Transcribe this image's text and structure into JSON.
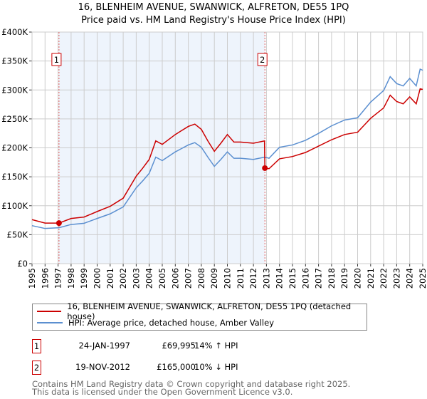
{
  "title_line1": "16, BLENHEIM AVENUE, SWANWICK, ALFRETON, DE55 1PQ",
  "title_line2": "Price paid vs. HM Land Registry's House Price Index (HPI)",
  "chart_data": {
    "type": "line",
    "xlim": [
      1995,
      2025
    ],
    "ylim": [
      0,
      400000
    ],
    "y_ticks": [
      0,
      50000,
      100000,
      150000,
      200000,
      250000,
      300000,
      350000,
      400000
    ],
    "y_tick_labels": [
      "£0",
      "£50K",
      "£100K",
      "£150K",
      "£200K",
      "£250K",
      "£300K",
      "£350K",
      "£400K"
    ],
    "x_ticks": [
      "1995",
      "1996",
      "1997",
      "1998",
      "1999",
      "2000",
      "2001",
      "2002",
      "2003",
      "2004",
      "2005",
      "2006",
      "2007",
      "2008",
      "2009",
      "2010",
      "2011",
      "2012",
      "2013",
      "2014",
      "2015",
      "2016",
      "2017",
      "2018",
      "2019",
      "2020",
      "2021",
      "2022",
      "2023",
      "2024",
      "2025"
    ],
    "grid": true,
    "shaded_range": [
      1997.07,
      2012.88
    ],
    "series": [
      {
        "name": "16, BLENHEIM AVENUE, SWANWICK, ALFRETON, DE55 1PQ (detached house)",
        "color": "#cc0000",
        "x": [
          1995,
          1996,
          1997.07,
          1998,
          1999,
          2000,
          2001,
          2002,
          2003,
          2003.5,
          2004,
          2004.5,
          2005,
          2006,
          2007,
          2007.5,
          2008,
          2008.5,
          2009,
          2009.5,
          2010,
          2010.5,
          2011,
          2012,
          2012.85,
          2012.88,
          2013.2,
          2014,
          2015,
          2016,
          2017,
          2018,
          2019,
          2020,
          2021,
          2022,
          2022.5,
          2023,
          2023.5,
          2024,
          2024.5,
          2024.8,
          2025
        ],
        "y": [
          76000,
          70000,
          70000,
          78000,
          80500,
          90000,
          99000,
          113000,
          151000,
          165000,
          180000,
          212000,
          206000,
          223000,
          237000,
          241000,
          232000,
          212000,
          194000,
          208000,
          223000,
          210000,
          210000,
          208000,
          212000,
          165000,
          164000,
          181000,
          185000,
          192000,
          203000,
          214000,
          223000,
          227000,
          251000,
          269000,
          291000,
          280000,
          276000,
          288000,
          276000,
          302000,
          301000
        ]
      },
      {
        "name": "HPI: Average price, detached house, Amber Valley",
        "color": "#5b8fd0",
        "x": [
          1995,
          1996,
          1997.07,
          1998,
          1999,
          2000,
          2001,
          2002,
          2003,
          2003.5,
          2004,
          2004.5,
          2005,
          2006,
          2007,
          2007.5,
          2008,
          2008.5,
          2009,
          2009.5,
          2010,
          2010.5,
          2011,
          2012,
          2012.88,
          2013.2,
          2014,
          2015,
          2016,
          2017,
          2018,
          2019,
          2020,
          2021,
          2022,
          2022.5,
          2023,
          2023.5,
          2024,
          2024.5,
          2024.8,
          2025
        ],
        "y": [
          65600,
          60700,
          62000,
          67600,
          69700,
          78000,
          86000,
          98000,
          131000,
          143000,
          156000,
          184000,
          178000,
          193000,
          205000,
          209000,
          201000,
          184000,
          168000,
          180000,
          193000,
          182000,
          182000,
          180000,
          184000,
          182000,
          201000,
          205000,
          213000,
          225000,
          238000,
          248000,
          252000,
          279000,
          299000,
          323000,
          311000,
          307000,
          320000,
          307000,
          336000,
          334000
        ]
      }
    ],
    "sales": [
      {
        "label": "1",
        "x": 1997.07,
        "y": 69995,
        "date": "24-JAN-1997",
        "price": "£69,995",
        "hpi": "14% ↑ HPI"
      },
      {
        "label": "2",
        "x": 2012.88,
        "y": 165000,
        "date": "19-NOV-2012",
        "price": "£165,000",
        "hpi": "10% ↓ HPI"
      }
    ]
  },
  "legend": [
    "16, BLENHEIM AVENUE, SWANWICK, ALFRETON, DE55 1PQ (detached house)",
    "HPI: Average price, detached house, Amber Valley"
  ],
  "footer_line1": "Contains HM Land Registry data © Crown copyright and database right 2025.",
  "footer_line2": "This data is licensed under the Open Government Licence v3.0."
}
